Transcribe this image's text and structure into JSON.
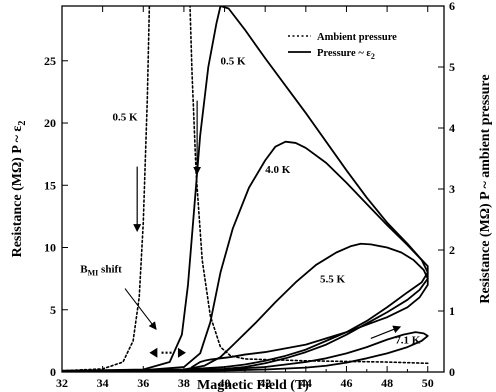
{
  "chart_data": {
    "type": "line",
    "xlabel": "Magnetic Field (T)",
    "ylabel_left": "Resistance (MΩ)  P ~ ε",
    "ylabel_left_sub": "2",
    "ylabel_right": "Resistance (MΩ)  P ~ ambient pressure",
    "xlim": [
      32,
      50.8
    ],
    "ylim_left": [
      0,
      29.4
    ],
    "ylim_right": [
      0,
      6
    ],
    "x_ticks": [
      32,
      34,
      36,
      38,
      40,
      42,
      44,
      46,
      48,
      50
    ],
    "y_left_ticks": [
      0,
      5,
      10,
      15,
      20,
      25
    ],
    "y_right_ticks": [
      0,
      1,
      2,
      3,
      4,
      5,
      6
    ],
    "legend": [
      {
        "label": "Ambient pressure",
        "style": "dotted"
      },
      {
        "label": "Pressure ~ ε",
        "sub": "2",
        "style": "solid"
      }
    ],
    "annotations": {
      "left_05K": "0.5 K",
      "right_05K": "0.5 K",
      "k40": "4.0 K",
      "k55": "5.5 K",
      "k71": "7.1 K",
      "bmi": "B",
      "bmi_sub": "MI",
      "bmi_suffix": " shift"
    },
    "series": [
      {
        "style": "dotted",
        "axis": "left",
        "temperature": "0.5 K",
        "x": [
          32,
          34,
          35,
          35.5,
          35.8,
          36.0,
          36.2,
          36.3
        ],
        "y": [
          0.1,
          0.25,
          0.8,
          2.5,
          6,
          12,
          22,
          29.4
        ]
      },
      {
        "style": "dotted",
        "axis": "left",
        "temperature": "0.5 K",
        "x": [
          50,
          48,
          46,
          44,
          42,
          41,
          40.3,
          39.8,
          39.3,
          38.9,
          38.6,
          38.4,
          38.3
        ],
        "y": [
          0.7,
          0.8,
          0.85,
          0.9,
          1.0,
          1.05,
          1.3,
          2,
          4.5,
          9,
          16,
          24,
          29.4
        ]
      },
      {
        "style": "solid",
        "axis": "left",
        "temperature": "0.5 K",
        "x": [
          32,
          36,
          37.3,
          37.9,
          38.2,
          38.5,
          38.8,
          39.2,
          39.6,
          39.8,
          40.2,
          41,
          42,
          43,
          44,
          45,
          46,
          47,
          48,
          49,
          49.6,
          50,
          50,
          49.6,
          49,
          48,
          47,
          46,
          45,
          44,
          43,
          42,
          41,
          40.3,
          39.8,
          39.3,
          39.0,
          38.8,
          38.6,
          38.4,
          38.3
        ],
        "y": [
          0.1,
          0.2,
          0.8,
          3,
          7,
          13,
          19,
          24.5,
          28,
          29.4,
          29.2,
          27.5,
          25.2,
          23,
          20.8,
          18.5,
          16.2,
          14,
          12,
          10.3,
          9.2,
          8.5,
          7,
          6,
          5.2,
          4.4,
          3.8,
          3.2,
          2.7,
          2.2,
          1.9,
          1.6,
          1.4,
          1.2,
          1.1,
          1.0,
          0.9,
          0.8,
          0.6,
          0.4,
          0.2
        ]
      },
      {
        "style": "solid",
        "axis": "left",
        "temperature": "4.0 K",
        "x": [
          32,
          36,
          38,
          38.8,
          39.3,
          39.8,
          40.4,
          41.2,
          42,
          42.5,
          43,
          43.5,
          44,
          45,
          46,
          47,
          48,
          49,
          49.7,
          50,
          49.7,
          49,
          48,
          47,
          46,
          45,
          44,
          43,
          42,
          41,
          40,
          39,
          38,
          36,
          32
        ],
        "y": [
          0.1,
          0.15,
          0.4,
          1.5,
          4,
          8,
          11.5,
          14.8,
          17,
          18.1,
          18.5,
          18.4,
          18.0,
          16.8,
          15.2,
          13.5,
          11.8,
          10.2,
          9,
          8,
          7.2,
          6.4,
          5.2,
          4.1,
          3.2,
          2.5,
          1.8,
          1.3,
          0.9,
          0.6,
          0.4,
          0.3,
          0.2,
          0.15,
          0.1
        ]
      },
      {
        "style": "solid",
        "axis": "left",
        "temperature": "5.5 K",
        "x": [
          32,
          36,
          38,
          39,
          39.8,
          40.5,
          41.5,
          42.5,
          43.5,
          44.5,
          45.5,
          46.2,
          46.7,
          47.2,
          48,
          48.7,
          49.3,
          49.8,
          50,
          49.6,
          49,
          48,
          47,
          46,
          45,
          44,
          43,
          42,
          41,
          40,
          38,
          36,
          32
        ],
        "y": [
          0.05,
          0.1,
          0.2,
          0.5,
          1.2,
          2.3,
          3.9,
          5.6,
          7.2,
          8.6,
          9.6,
          10.1,
          10.3,
          10.25,
          10.0,
          9.6,
          9.0,
          8.2,
          7.5,
          6.6,
          5.8,
          4.8,
          3.9,
          3.0,
          2.2,
          1.6,
          1.1,
          0.7,
          0.4,
          0.25,
          0.15,
          0.1,
          0.05
        ]
      },
      {
        "style": "solid",
        "axis": "left",
        "temperature": "7.1 K",
        "x": [
          32,
          38,
          40,
          42,
          44,
          45,
          46,
          47,
          48,
          48.8,
          49.4,
          49.8,
          50,
          49.7,
          49,
          48,
          47,
          46,
          45,
          44,
          42,
          40,
          38,
          32
        ],
        "y": [
          0.05,
          0.1,
          0.2,
          0.4,
          0.8,
          1.1,
          1.5,
          2.0,
          2.6,
          3.0,
          3.2,
          3.1,
          2.9,
          2.5,
          2.0,
          1.5,
          1.1,
          0.75,
          0.5,
          0.35,
          0.2,
          0.12,
          0.08,
          0.05
        ]
      }
    ]
  }
}
